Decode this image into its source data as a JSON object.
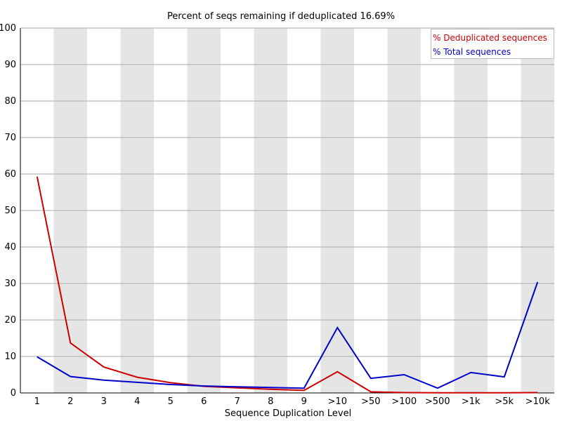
{
  "chart_data": {
    "type": "line",
    "title": "Percent of seqs remaining if deduplicated 16.69%",
    "xlabel": "Sequence Duplication Level",
    "ylabel": "",
    "ylim": [
      0,
      100
    ],
    "yticks": [
      0,
      10,
      20,
      30,
      40,
      50,
      60,
      70,
      80,
      90,
      100
    ],
    "categories": [
      "1",
      "2",
      "3",
      "4",
      "5",
      "6",
      "7",
      "8",
      "9",
      ">10",
      ">50",
      ">100",
      ">500",
      ">1k",
      ">5k",
      ">10k"
    ],
    "series": [
      {
        "name": "% Deduplicated sequences",
        "color": "#cc0000",
        "values": [
          59.3,
          13.7,
          7.1,
          4.3,
          2.8,
          1.8,
          1.4,
          1.0,
          0.7,
          5.8,
          0.3,
          0.1,
          0.05,
          0.05,
          0.05,
          0.1
        ]
      },
      {
        "name": "% Total sequences",
        "color": "#0000cc",
        "values": [
          9.9,
          4.5,
          3.5,
          2.9,
          2.3,
          1.9,
          1.7,
          1.5,
          1.3,
          17.9,
          4.0,
          5.0,
          1.3,
          5.6,
          4.4,
          30.4
        ]
      }
    ],
    "grid": true,
    "legend_position": "top-right",
    "band_color": "#e5e5e5"
  }
}
